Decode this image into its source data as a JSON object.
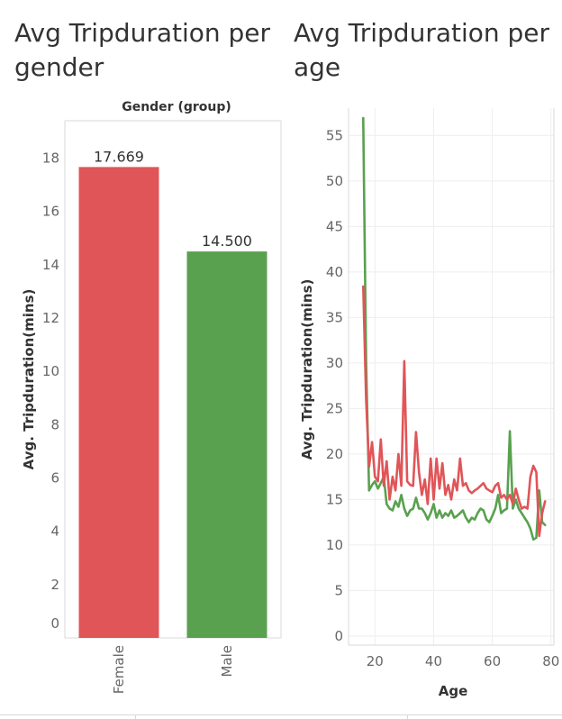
{
  "colors": {
    "female": "#e05558",
    "male": "#59a14f",
    "axis_text": "#666666",
    "title_text": "#333333",
    "grid": "#eeeeee"
  },
  "chart_data": [
    {
      "type": "bar",
      "title": "Avg Tripduration per gender",
      "header": "Gender (group)",
      "xlabel": "",
      "ylabel": "Avg. Tripduration(mins)",
      "categories": [
        "Female",
        "Male"
      ],
      "values": [
        17.669,
        14.5
      ],
      "value_labels": [
        "17.669",
        "14.500"
      ],
      "ylim": [
        0,
        19
      ],
      "yticks": [
        0,
        2,
        4,
        6,
        8,
        10,
        12,
        14,
        16,
        18
      ],
      "grid": false
    },
    {
      "type": "line",
      "title": "Avg Tripduration per age",
      "xlabel": "Age",
      "ylabel": "Avg. Tripduration(mins)",
      "xlim": [
        11,
        81
      ],
      "ylim": [
        -1,
        58
      ],
      "xticks": [
        20,
        40,
        60,
        80
      ],
      "yticks": [
        0,
        5,
        10,
        15,
        20,
        25,
        30,
        35,
        40,
        45,
        50,
        55
      ],
      "grid": true,
      "series": [
        {
          "color": "#59a14f",
          "x": [
            16,
            17,
            18,
            19,
            20,
            21,
            22,
            23,
            24,
            25,
            26,
            27,
            28,
            29,
            30,
            31,
            32,
            33,
            34,
            35,
            36,
            37,
            38,
            39,
            40,
            41,
            42,
            43,
            44,
            45,
            46,
            47,
            48,
            49,
            50,
            51,
            52,
            53,
            54,
            55,
            56,
            57,
            58,
            59,
            60,
            61,
            62,
            63,
            64,
            65,
            66,
            67,
            68,
            69,
            70,
            71,
            72,
            73,
            74,
            75,
            76,
            77,
            78
          ],
          "y": [
            56.9,
            30.0,
            16.0,
            16.6,
            17.0,
            16.2,
            16.8,
            17.5,
            14.5,
            14.0,
            13.8,
            14.8,
            14.2,
            15.5,
            14.0,
            13.2,
            13.8,
            14.0,
            15.2,
            14.0,
            14.0,
            13.5,
            12.8,
            13.5,
            14.5,
            13.0,
            13.8,
            13.0,
            13.5,
            13.2,
            13.8,
            13.0,
            13.2,
            13.5,
            13.8,
            13.0,
            12.5,
            13.0,
            12.8,
            13.5,
            14.0,
            13.8,
            12.8,
            12.5,
            13.2,
            14.0,
            15.5,
            13.5,
            13.8,
            14.0,
            22.5,
            14.0,
            15.0,
            14.0,
            13.5,
            13.0,
            12.5,
            11.8,
            10.6,
            10.8,
            16.0,
            12.5,
            12.2
          ]
        },
        {
          "color": "#e05558",
          "x": [
            16,
            17,
            18,
            19,
            20,
            21,
            22,
            23,
            24,
            25,
            26,
            27,
            28,
            29,
            30,
            31,
            32,
            33,
            34,
            35,
            36,
            37,
            38,
            39,
            40,
            41,
            42,
            43,
            44,
            45,
            46,
            47,
            48,
            49,
            50,
            51,
            52,
            53,
            54,
            55,
            56,
            57,
            58,
            59,
            60,
            61,
            62,
            63,
            64,
            65,
            66,
            67,
            68,
            69,
            70,
            71,
            72,
            73,
            74,
            75,
            76,
            77,
            78
          ],
          "y": [
            38.4,
            26.0,
            18.6,
            21.3,
            17.5,
            17.0,
            21.6,
            16.5,
            19.2,
            15.0,
            17.5,
            16.0,
            20.0,
            16.5,
            30.2,
            17.0,
            16.6,
            16.5,
            22.4,
            18.0,
            15.5,
            17.2,
            14.5,
            19.5,
            15.0,
            19.5,
            16.2,
            19.0,
            15.5,
            16.6,
            15.0,
            17.2,
            16.0,
            19.5,
            16.5,
            16.8,
            16.0,
            15.7,
            16.0,
            16.2,
            16.5,
            16.8,
            16.2,
            16.0,
            15.8,
            16.5,
            16.8,
            15.2,
            15.5,
            15.0,
            15.5,
            14.5,
            16.2,
            15.0,
            14.0,
            14.2,
            14.0,
            17.5,
            18.7,
            18.0,
            11.0,
            13.5,
            14.8
          ]
        }
      ]
    }
  ]
}
